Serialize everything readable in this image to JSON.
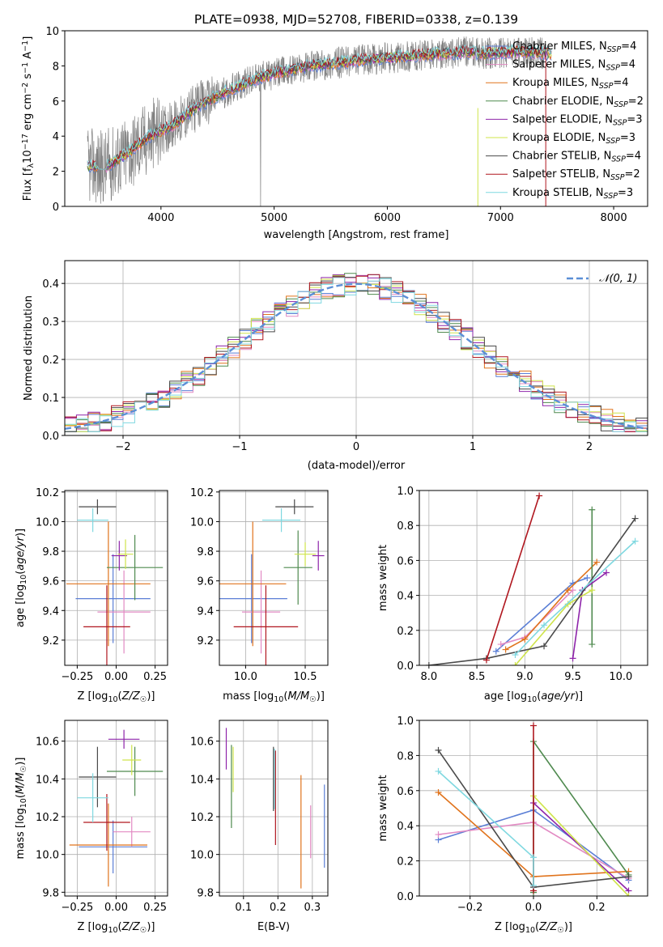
{
  "figure": {
    "title": "PLATE=0938, MJD=52708, FIBERID=0338, z=0.139"
  },
  "colors": {
    "Chabrier MILES": "#5b7fd6",
    "Salpeter MILES": "#e28ac3",
    "Kroupa MILES": "#e0731c",
    "Chabrier ELODIE": "#4f8a4f",
    "Salpeter ELODIE": "#8e24aa",
    "Kroupa ELODIE": "#cfe44a",
    "Chabrier STELIB": "#4a4a4a",
    "Salpeter STELIB": "#b0171f",
    "Kroupa STELIB": "#7fd8e0",
    "gaussian": "#5b8fd6",
    "data": "#808080"
  },
  "chart_data": [
    {
      "id": "spectrum",
      "type": "line",
      "title": "PLATE=0938, MJD=52708, FIBERID=0338, z=0.139",
      "xlabel": "wavelength [Angstrom, rest frame]",
      "ylabel": "Flux [f_λ10^-17 erg cm^-2 s^-1 A^-1]",
      "xlim": [
        3150,
        8300
      ],
      "ylim": [
        0,
        10
      ],
      "xticks": [
        4000,
        5000,
        6000,
        7000,
        8000
      ],
      "yticks": [
        0,
        2,
        4,
        6,
        8,
        10
      ],
      "legend_position": "top-right",
      "legend": [
        {
          "label": "Chabrier MILES, N_SSP=4",
          "series": "Chabrier MILES"
        },
        {
          "label": "Salpeter MILES, N_SSP=4",
          "series": "Salpeter MILES"
        },
        {
          "label": "Kroupa MILES, N_SSP=4",
          "series": "Kroupa MILES"
        },
        {
          "label": "Chabrier ELODIE, N_SSP=2",
          "series": "Chabrier ELODIE"
        },
        {
          "label": "Salpeter ELODIE, N_SSP=3",
          "series": "Salpeter ELODIE"
        },
        {
          "label": "Kroupa ELODIE, N_SSP=3",
          "series": "Kroupa ELODIE"
        },
        {
          "label": "Chabrier STELIB, N_SSP=4",
          "series": "Chabrier STELIB"
        },
        {
          "label": "Salpeter STELIB, N_SSP=2",
          "series": "Salpeter STELIB"
        },
        {
          "label": "Kroupa STELIB, N_SSP=3",
          "series": "Kroupa STELIB"
        }
      ],
      "model_trend": {
        "x": [
          3350,
          3500,
          3700,
          3900,
          4100,
          4300,
          4500,
          4700,
          4900,
          5100,
          5300,
          5500,
          5700,
          5900,
          6100,
          6300,
          6500,
          6700,
          6900,
          7100,
          7300,
          7500
        ],
        "y": [
          2.3,
          2.2,
          3.0,
          4.0,
          4.6,
          5.6,
          6.3,
          6.9,
          7.4,
          7.7,
          8.0,
          8.1,
          8.3,
          8.4,
          8.5,
          8.6,
          8.7,
          8.8,
          8.7,
          8.8,
          8.75,
          8.7
        ]
      }
    },
    {
      "id": "residuals",
      "type": "histogram",
      "xlabel": "(data-model)/error",
      "ylabel": "Normed distribution",
      "xlim": [
        -2.5,
        2.5
      ],
      "ylim": [
        0,
        0.46
      ],
      "xticks": [
        -2,
        -1,
        0,
        1,
        2
      ],
      "yticks": [
        0.0,
        0.1,
        0.2,
        0.3,
        0.4
      ],
      "legend": [
        {
          "label": "𝒩(0, 1)"
        }
      ],
      "legend_position": "top-right",
      "bin_width": 0.1,
      "bin_start": -2.5
    },
    {
      "id": "age_vs_Z",
      "type": "scatter",
      "xlabel": "Z [log10(Z/Z☉)]",
      "ylabel": "age [log10(age/yr)]",
      "xlim": [
        -0.33,
        0.33
      ],
      "ylim": [
        9.03,
        10.21
      ],
      "xticks": [
        -0.25,
        0.0,
        0.25
      ],
      "yticks": [
        9.2,
        9.4,
        9.6,
        9.8,
        10.0,
        10.2
      ],
      "points": [
        {
          "series": "Chabrier MILES",
          "x": -0.02,
          "xerr": 0.24,
          "y": 9.48,
          "yerr": 0.3
        },
        {
          "series": "Salpeter MILES",
          "x": 0.05,
          "xerr": 0.17,
          "y": 9.39,
          "yerr": 0.28
        },
        {
          "series": "Kroupa MILES",
          "x": -0.05,
          "xerr": 0.27,
          "y": 9.58,
          "yerr": 0.42
        },
        {
          "series": "Chabrier ELODIE",
          "x": 0.12,
          "xerr": 0.18,
          "y": 9.69,
          "yerr": 0.22
        },
        {
          "series": "Salpeter ELODIE",
          "x": 0.02,
          "xerr": 0.05,
          "y": 9.77,
          "yerr": 0.1
        },
        {
          "series": "Kroupa ELODIE",
          "x": 0.06,
          "xerr": 0.05,
          "y": 9.78,
          "yerr": 0.1
        },
        {
          "series": "Chabrier STELIB",
          "x": -0.12,
          "xerr": 0.12,
          "y": 10.1,
          "yerr": 0.05
        },
        {
          "series": "Salpeter STELIB",
          "x": -0.06,
          "xerr": 0.15,
          "y": 9.29,
          "yerr": 0.28
        },
        {
          "series": "Kroupa STELIB",
          "x": -0.15,
          "xerr": 0.1,
          "y": 10.01,
          "yerr": 0.08
        }
      ]
    },
    {
      "id": "age_vs_mass",
      "type": "scatter",
      "xlabel": "mass [log10(M/M☉)]",
      "ylabel": "",
      "xlim": [
        9.78,
        10.69
      ],
      "ylim": [
        9.03,
        10.21
      ],
      "xticks": [
        10.0,
        10.5
      ],
      "yticks": [
        9.2,
        9.4,
        9.6,
        9.8,
        10.0,
        10.2
      ],
      "points": [
        {
          "series": "Chabrier MILES",
          "x": 10.05,
          "xerr": 0.3,
          "y": 9.48,
          "yerr": 0.3
        },
        {
          "series": "Salpeter MILES",
          "x": 10.13,
          "xerr": 0.16,
          "y": 9.39,
          "yerr": 0.28
        },
        {
          "series": "Kroupa MILES",
          "x": 10.06,
          "xerr": 0.28,
          "y": 9.58,
          "yerr": 0.42
        },
        {
          "series": "Chabrier ELODIE",
          "x": 10.44,
          "xerr": 0.12,
          "y": 9.69,
          "yerr": 0.25
        },
        {
          "series": "Salpeter ELODIE",
          "x": 10.61,
          "xerr": 0.05,
          "y": 9.77,
          "yerr": 0.1
        },
        {
          "series": "Kroupa ELODIE",
          "x": 10.5,
          "xerr": 0.09,
          "y": 9.78,
          "yerr": 0.08
        },
        {
          "series": "Chabrier STELIB",
          "x": 10.41,
          "xerr": 0.16,
          "y": 10.1,
          "yerr": 0.05
        },
        {
          "series": "Salpeter STELIB",
          "x": 10.17,
          "xerr": 0.27,
          "y": 9.29,
          "yerr": 0.28
        },
        {
          "series": "Kroupa STELIB",
          "x": 10.3,
          "xerr": 0.16,
          "y": 10.01,
          "yerr": 0.08
        }
      ]
    },
    {
      "id": "massweight_vs_age",
      "type": "line",
      "xlabel": "age [log10(age/yr)]",
      "ylabel": "mass weight",
      "xlim": [
        7.9,
        10.28
      ],
      "ylim": [
        0,
        1
      ],
      "xticks": [
        8.0,
        8.5,
        9.0,
        9.5,
        10.0
      ],
      "yticks": [
        0.0,
        0.2,
        0.4,
        0.6,
        0.8,
        1.0
      ],
      "series": [
        {
          "series": "Chabrier MILES",
          "x": [
            8.7,
            9.5,
            9.65
          ],
          "y": [
            0.08,
            0.47,
            0.5
          ]
        },
        {
          "series": "Salpeter MILES",
          "x": [
            8.75,
            9.0,
            9.5
          ],
          "y": [
            0.12,
            0.16,
            0.43
          ]
        },
        {
          "series": "Kroupa MILES",
          "x": [
            8.8,
            9.0,
            9.45,
            9.75
          ],
          "y": [
            0.09,
            0.15,
            0.43,
            0.59
          ]
        },
        {
          "series": "Chabrier ELODIE",
          "x": [
            9.7,
            9.7
          ],
          "y": [
            0.12,
            0.89
          ]
        },
        {
          "series": "Salpeter ELODIE",
          "x": [
            9.5,
            9.6,
            9.85
          ],
          "y": [
            0.04,
            0.43,
            0.53
          ]
        },
        {
          "series": "Kroupa ELODIE",
          "x": [
            8.9,
            9.45,
            9.7
          ],
          "y": [
            0.0,
            0.35,
            0.43
          ]
        },
        {
          "series": "Chabrier STELIB",
          "x": [
            8.0,
            8.6,
            9.2,
            10.15
          ],
          "y": [
            0.0,
            0.04,
            0.11,
            0.84
          ]
        },
        {
          "series": "Salpeter STELIB",
          "x": [
            8.6,
            9.15
          ],
          "y": [
            0.03,
            0.97
          ]
        },
        {
          "series": "Kroupa STELIB",
          "x": [
            8.9,
            9.2,
            10.15
          ],
          "y": [
            0.06,
            0.23,
            0.71
          ]
        }
      ]
    },
    {
      "id": "mass_vs_Z",
      "type": "scatter",
      "xlabel": "Z [log10(Z/Z☉)]",
      "ylabel": "mass [log10(M/M☉)]",
      "xlim": [
        -0.33,
        0.33
      ],
      "ylim": [
        9.78,
        10.71
      ],
      "xticks": [
        -0.25,
        0.0,
        0.25
      ],
      "yticks": [
        9.8,
        10.0,
        10.2,
        10.4,
        10.6
      ],
      "points": [
        {
          "series": "Chabrier MILES",
          "x": -0.02,
          "xerr": 0.22,
          "y": 10.04,
          "yerr": 0.14
        },
        {
          "series": "Salpeter MILES",
          "x": 0.1,
          "xerr": 0.12,
          "y": 10.12,
          "yerr": 0.08
        },
        {
          "series": "Kroupa MILES",
          "x": -0.05,
          "xerr": 0.25,
          "y": 10.05,
          "yerr": 0.22
        },
        {
          "series": "Chabrier ELODIE",
          "x": 0.12,
          "xerr": 0.18,
          "y": 10.44,
          "yerr": 0.13
        },
        {
          "series": "Salpeter ELODIE",
          "x": 0.05,
          "xerr": 0.1,
          "y": 10.61,
          "yerr": 0.05
        },
        {
          "series": "Kroupa ELODIE",
          "x": 0.1,
          "xerr": 0.06,
          "y": 10.5,
          "yerr": 0.08
        },
        {
          "series": "Chabrier STELIB",
          "x": -0.12,
          "xerr": 0.12,
          "y": 10.41,
          "yerr": 0.16
        },
        {
          "series": "Salpeter STELIB",
          "x": -0.06,
          "xerr": 0.15,
          "y": 10.17,
          "yerr": 0.15
        },
        {
          "series": "Kroupa STELIB",
          "x": -0.15,
          "xerr": 0.1,
          "y": 10.3,
          "yerr": 0.13
        }
      ]
    },
    {
      "id": "mass_vs_ebv",
      "type": "scatter",
      "xlabel": "E(B-V)",
      "ylabel": "",
      "xlim": [
        0.03,
        0.345
      ],
      "ylim": [
        9.78,
        10.71
      ],
      "xticks": [
        0.1,
        0.2,
        0.3
      ],
      "yticks": [
        9.8,
        10.0,
        10.2,
        10.4,
        10.6
      ],
      "points": [
        {
          "series": "Chabrier MILES",
          "x": 0.335,
          "y": 10.15,
          "yerr": 0.22
        },
        {
          "series": "Salpeter MILES",
          "x": 0.295,
          "y": 10.12,
          "yerr": 0.14
        },
        {
          "series": "Kroupa MILES",
          "x": 0.267,
          "y": 10.12,
          "yerr": 0.3
        },
        {
          "series": "Chabrier ELODIE",
          "x": 0.065,
          "y": 10.36,
          "yerr": 0.22
        },
        {
          "series": "Salpeter ELODIE",
          "x": 0.05,
          "y": 10.56,
          "yerr": 0.11
        },
        {
          "series": "Kroupa ELODIE",
          "x": 0.07,
          "y": 10.45,
          "yerr": 0.12
        },
        {
          "series": "Chabrier STELIB",
          "x": 0.187,
          "y": 10.4,
          "yerr": 0.17
        },
        {
          "series": "Salpeter STELIB",
          "x": 0.193,
          "y": 10.3,
          "yerr": 0.25
        },
        {
          "series": "Kroupa STELIB",
          "x": 0.19,
          "y": 10.4,
          "yerr": 0.16
        }
      ]
    },
    {
      "id": "massweight_vs_Z",
      "type": "line",
      "xlabel": "Z [log10(Z/Z☉)]",
      "ylabel": "mass weight",
      "xlim": [
        -0.36,
        0.36
      ],
      "ylim": [
        0,
        1
      ],
      "xticks": [
        -0.2,
        0.0,
        0.2
      ],
      "yticks": [
        0.0,
        0.2,
        0.4,
        0.6,
        0.8,
        1.0
      ],
      "series": [
        {
          "series": "Chabrier MILES",
          "x": [
            -0.3,
            0.0,
            0.3
          ],
          "y": [
            0.32,
            0.49,
            0.09
          ]
        },
        {
          "series": "Salpeter MILES",
          "x": [
            -0.3,
            0.0,
            0.3
          ],
          "y": [
            0.35,
            0.42,
            0.1
          ]
        },
        {
          "series": "Kroupa MILES",
          "x": [
            -0.3,
            0.0,
            0.3
          ],
          "y": [
            0.59,
            0.11,
            0.14
          ]
        },
        {
          "series": "Chabrier ELODIE",
          "x": [
            0.0,
            0.0,
            0.3
          ],
          "y": [
            0.02,
            0.88,
            0.12
          ]
        },
        {
          "series": "Salpeter ELODIE",
          "x": [
            0.0,
            0.3
          ],
          "y": [
            0.53,
            0.03
          ]
        },
        {
          "series": "Kroupa ELODIE",
          "x": [
            0.0,
            0.3
          ],
          "y": [
            0.57,
            0.0
          ]
        },
        {
          "series": "Chabrier STELIB",
          "x": [
            -0.3,
            0.0,
            0.3
          ],
          "y": [
            0.83,
            0.05,
            0.11
          ]
        },
        {
          "series": "Salpeter STELIB",
          "x": [
            0.0,
            0.0
          ],
          "y": [
            0.03,
            0.97
          ]
        },
        {
          "series": "Kroupa STELIB",
          "x": [
            -0.3,
            0.0,
            0.0
          ],
          "y": [
            0.71,
            0.22,
            0.06
          ]
        }
      ]
    }
  ]
}
